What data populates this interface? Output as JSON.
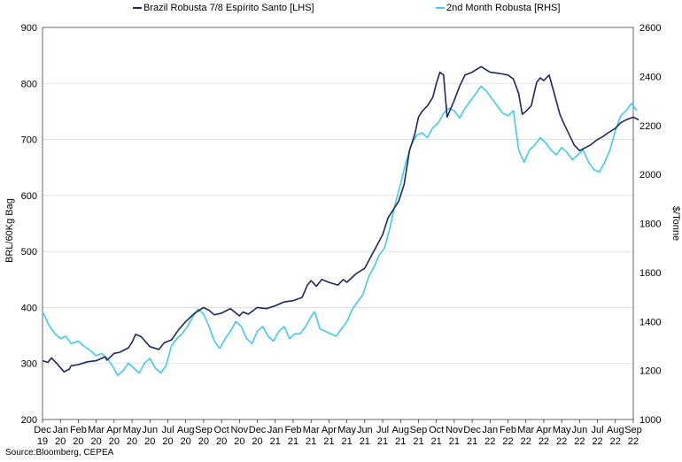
{
  "chart_data": {
    "type": "line",
    "title": "",
    "source": "Source:Bloomberg, CEPEA",
    "ylabel": "BRL/60Kg Bag",
    "y2label": "$/Tonne",
    "xlabel": "",
    "ylim": [
      200,
      900
    ],
    "y2lim": [
      1000,
      2600
    ],
    "yticks": [
      "200",
      "300",
      "400",
      "500",
      "600",
      "700",
      "800",
      "900"
    ],
    "y2ticks": [
      "1000",
      "1200",
      "1400",
      "1600",
      "1800",
      "2000",
      "2200",
      "2400",
      "2600"
    ],
    "xticks": [
      [
        "Dec",
        "19"
      ],
      [
        "Jan",
        "20"
      ],
      [
        "Feb",
        "20"
      ],
      [
        "Mar",
        "20"
      ],
      [
        "Apr",
        "20"
      ],
      [
        "May",
        "20"
      ],
      [
        "Jun",
        "20"
      ],
      [
        "Jul",
        "20"
      ],
      [
        "Aug",
        "20"
      ],
      [
        "Sep",
        "20"
      ],
      [
        "Oct",
        "20"
      ],
      [
        "Nov",
        "20"
      ],
      [
        "Dec",
        "20"
      ],
      [
        "Jan",
        "21"
      ],
      [
        "Feb",
        "21"
      ],
      [
        "Mar",
        "21"
      ],
      [
        "Apr",
        "21"
      ],
      [
        "May",
        "21"
      ],
      [
        "Jun",
        "21"
      ],
      [
        "Jul",
        "21"
      ],
      [
        "Aug",
        "21"
      ],
      [
        "Sep",
        "21"
      ],
      [
        "Oct",
        "21"
      ],
      [
        "Nov",
        "21"
      ],
      [
        "Dec",
        "21"
      ],
      [
        "Jan",
        "22"
      ],
      [
        "Feb",
        "22"
      ],
      [
        "Mar",
        "22"
      ],
      [
        "Apr",
        "22"
      ],
      [
        "May",
        "22"
      ],
      [
        "Jun",
        "22"
      ],
      [
        "Jul",
        "22"
      ],
      [
        "Aug",
        "22"
      ],
      [
        "Sep",
        "22"
      ]
    ],
    "x_unit": "months since Dec 2019",
    "series": [
      {
        "name": "Brazil Robusta 7/8 Espírito Santo [LHS]",
        "axis": "left",
        "color": "#1b2a5c",
        "x": [
          0,
          0.3,
          0.5,
          0.8,
          1.2,
          1.5,
          1.6,
          2.0,
          2.5,
          3.0,
          3.5,
          3.6,
          4.0,
          4.3,
          4.8,
          5.0,
          5.2,
          5.5,
          6.0,
          6.5,
          6.8,
          7.2,
          7.6,
          8.0,
          8.5,
          9.0,
          9.3,
          9.6,
          10.0,
          10.5,
          11.0,
          11.2,
          11.5,
          12.0,
          12.5,
          13.0,
          13.5,
          14.0,
          14.5,
          14.8,
          15.0,
          15.3,
          15.6,
          16.0,
          16.5,
          16.8,
          17.0,
          17.5,
          18.0,
          18.5,
          19.0,
          19.3,
          19.6,
          19.9,
          20.2,
          20.5,
          20.8,
          21.0,
          21.2,
          21.5,
          21.8,
          22.0,
          22.2,
          22.4,
          22.6,
          23.0,
          23.3,
          23.6,
          24.0,
          24.5,
          25.0,
          25.5,
          26.0,
          26.3,
          26.6,
          26.8,
          27.0,
          27.3,
          27.6,
          27.8,
          28.0,
          28.3,
          28.6,
          28.9,
          29.1,
          29.4,
          29.7,
          30.0,
          30.3,
          30.6,
          31.0,
          31.3,
          31.6,
          32.0,
          32.3,
          32.6,
          33.0,
          33.3
        ],
        "values": [
          305,
          302,
          310,
          300,
          285,
          290,
          296,
          298,
          303,
          305,
          312,
          306,
          318,
          320,
          328,
          338,
          352,
          348,
          330,
          325,
          337,
          342,
          360,
          375,
          390,
          400,
          395,
          387,
          390,
          398,
          385,
          392,
          388,
          400,
          398,
          403,
          410,
          412,
          418,
          440,
          448,
          438,
          450,
          445,
          440,
          450,
          445,
          460,
          470,
          500,
          530,
          560,
          575,
          590,
          620,
          680,
          710,
          740,
          750,
          760,
          775,
          800,
          820,
          815,
          740,
          770,
          795,
          815,
          820,
          830,
          820,
          818,
          815,
          808,
          782,
          745,
          750,
          760,
          802,
          810,
          805,
          815,
          780,
          745,
          730,
          710,
          690,
          680,
          685,
          690,
          700,
          705,
          712,
          720,
          730,
          735,
          740,
          735
        ]
      },
      {
        "name": "2nd Month Robusta [RHS]",
        "axis": "right",
        "color": "#3fcbef",
        "x": [
          0,
          0.2,
          0.4,
          0.7,
          1.0,
          1.3,
          1.6,
          2.0,
          2.3,
          2.7,
          3.0,
          3.3,
          3.6,
          3.9,
          4.2,
          4.5,
          4.8,
          5.1,
          5.4,
          5.7,
          6.0,
          6.3,
          6.6,
          6.9,
          7.2,
          7.5,
          7.8,
          8.1,
          8.4,
          8.7,
          9.0,
          9.3,
          9.6,
          9.9,
          10.2,
          10.5,
          10.8,
          11.1,
          11.4,
          11.7,
          12.0,
          12.3,
          12.6,
          12.9,
          13.2,
          13.5,
          13.8,
          14.1,
          14.4,
          14.7,
          15.0,
          15.2,
          15.5,
          15.8,
          16.1,
          16.4,
          16.7,
          17.0,
          17.3,
          17.6,
          17.9,
          18.2,
          18.5,
          18.8,
          19.1,
          19.4,
          19.7,
          20.0,
          20.3,
          20.6,
          20.9,
          21.2,
          21.5,
          21.8,
          22.1,
          22.4,
          22.7,
          23.0,
          23.3,
          23.6,
          23.9,
          24.2,
          24.5,
          24.8,
          25.1,
          25.4,
          25.7,
          26.0,
          26.3,
          26.6,
          26.9,
          27.2,
          27.5,
          27.8,
          28.1,
          28.4,
          28.7,
          29.0,
          29.3,
          29.6,
          29.9,
          30.2,
          30.5,
          30.8,
          31.1,
          31.4,
          31.7,
          32.0,
          32.3,
          32.6,
          32.9,
          33.2
        ],
        "values": [
          1440,
          1410,
          1380,
          1350,
          1330,
          1340,
          1310,
          1320,
          1300,
          1280,
          1260,
          1270,
          1250,
          1220,
          1180,
          1200,
          1230,
          1210,
          1190,
          1230,
          1250,
          1210,
          1190,
          1220,
          1300,
          1330,
          1350,
          1380,
          1420,
          1450,
          1430,
          1380,
          1320,
          1290,
          1330,
          1360,
          1400,
          1380,
          1330,
          1310,
          1360,
          1380,
          1340,
          1320,
          1360,
          1380,
          1330,
          1350,
          1350,
          1380,
          1420,
          1440,
          1370,
          1360,
          1350,
          1340,
          1370,
          1400,
          1450,
          1480,
          1510,
          1580,
          1620,
          1670,
          1700,
          1780,
          1880,
          1960,
          2050,
          2120,
          2160,
          2170,
          2150,
          2190,
          2210,
          2250,
          2270,
          2260,
          2230,
          2270,
          2300,
          2330,
          2360,
          2340,
          2310,
          2280,
          2250,
          2240,
          2260,
          2100,
          2050,
          2100,
          2120,
          2150,
          2130,
          2100,
          2080,
          2110,
          2090,
          2060,
          2080,
          2100,
          2050,
          2020,
          2010,
          2050,
          2100,
          2180,
          2240,
          2260,
          2290,
          2260
        ]
      }
    ]
  }
}
